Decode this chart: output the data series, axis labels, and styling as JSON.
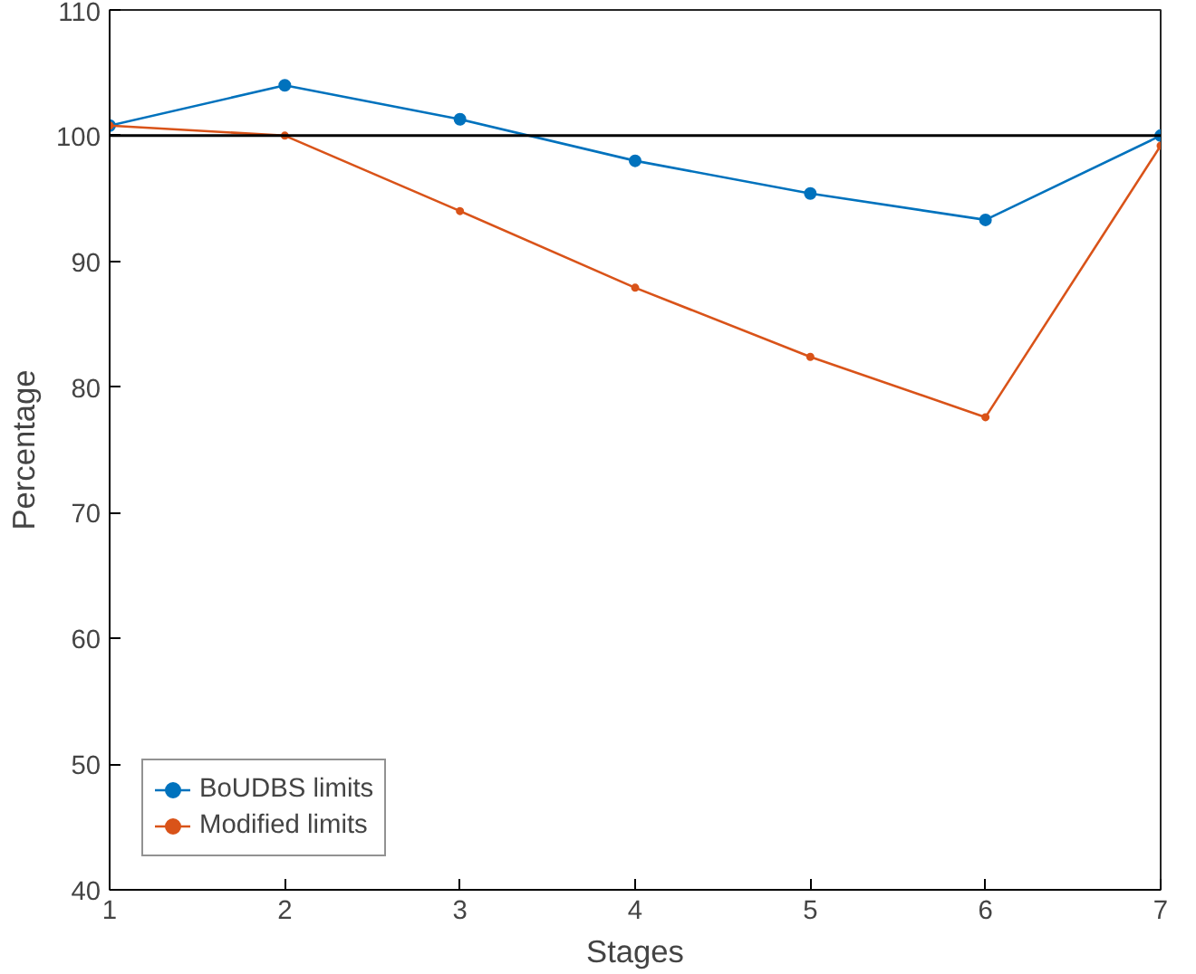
{
  "chart_data": {
    "type": "line",
    "xlabel": "Stages",
    "ylabel": "Percentage",
    "x": [
      1,
      2,
      3,
      4,
      5,
      6,
      7
    ],
    "series": [
      {
        "name": "BoUDBS limits",
        "color": "#0072bd",
        "values": [
          100.8,
          104.0,
          101.3,
          98.0,
          95.4,
          93.3,
          100.0
        ]
      },
      {
        "name": "Modified limits",
        "color": "#d95319",
        "values": [
          100.8,
          100.0,
          94.0,
          87.9,
          82.4,
          77.6,
          99.2
        ]
      }
    ],
    "xlim": [
      1,
      7
    ],
    "xticks": [
      1,
      2,
      3,
      4,
      5,
      6,
      7
    ],
    "ylim": [
      40,
      110
    ],
    "yticks": [
      40,
      50,
      60,
      70,
      80,
      90,
      100,
      110
    ],
    "ref_lines": [
      {
        "axis": "y",
        "value": 100,
        "color": "#000000"
      }
    ],
    "grid": false,
    "legend": "bottom left",
    "marker": "circle",
    "line_style": "solid"
  }
}
